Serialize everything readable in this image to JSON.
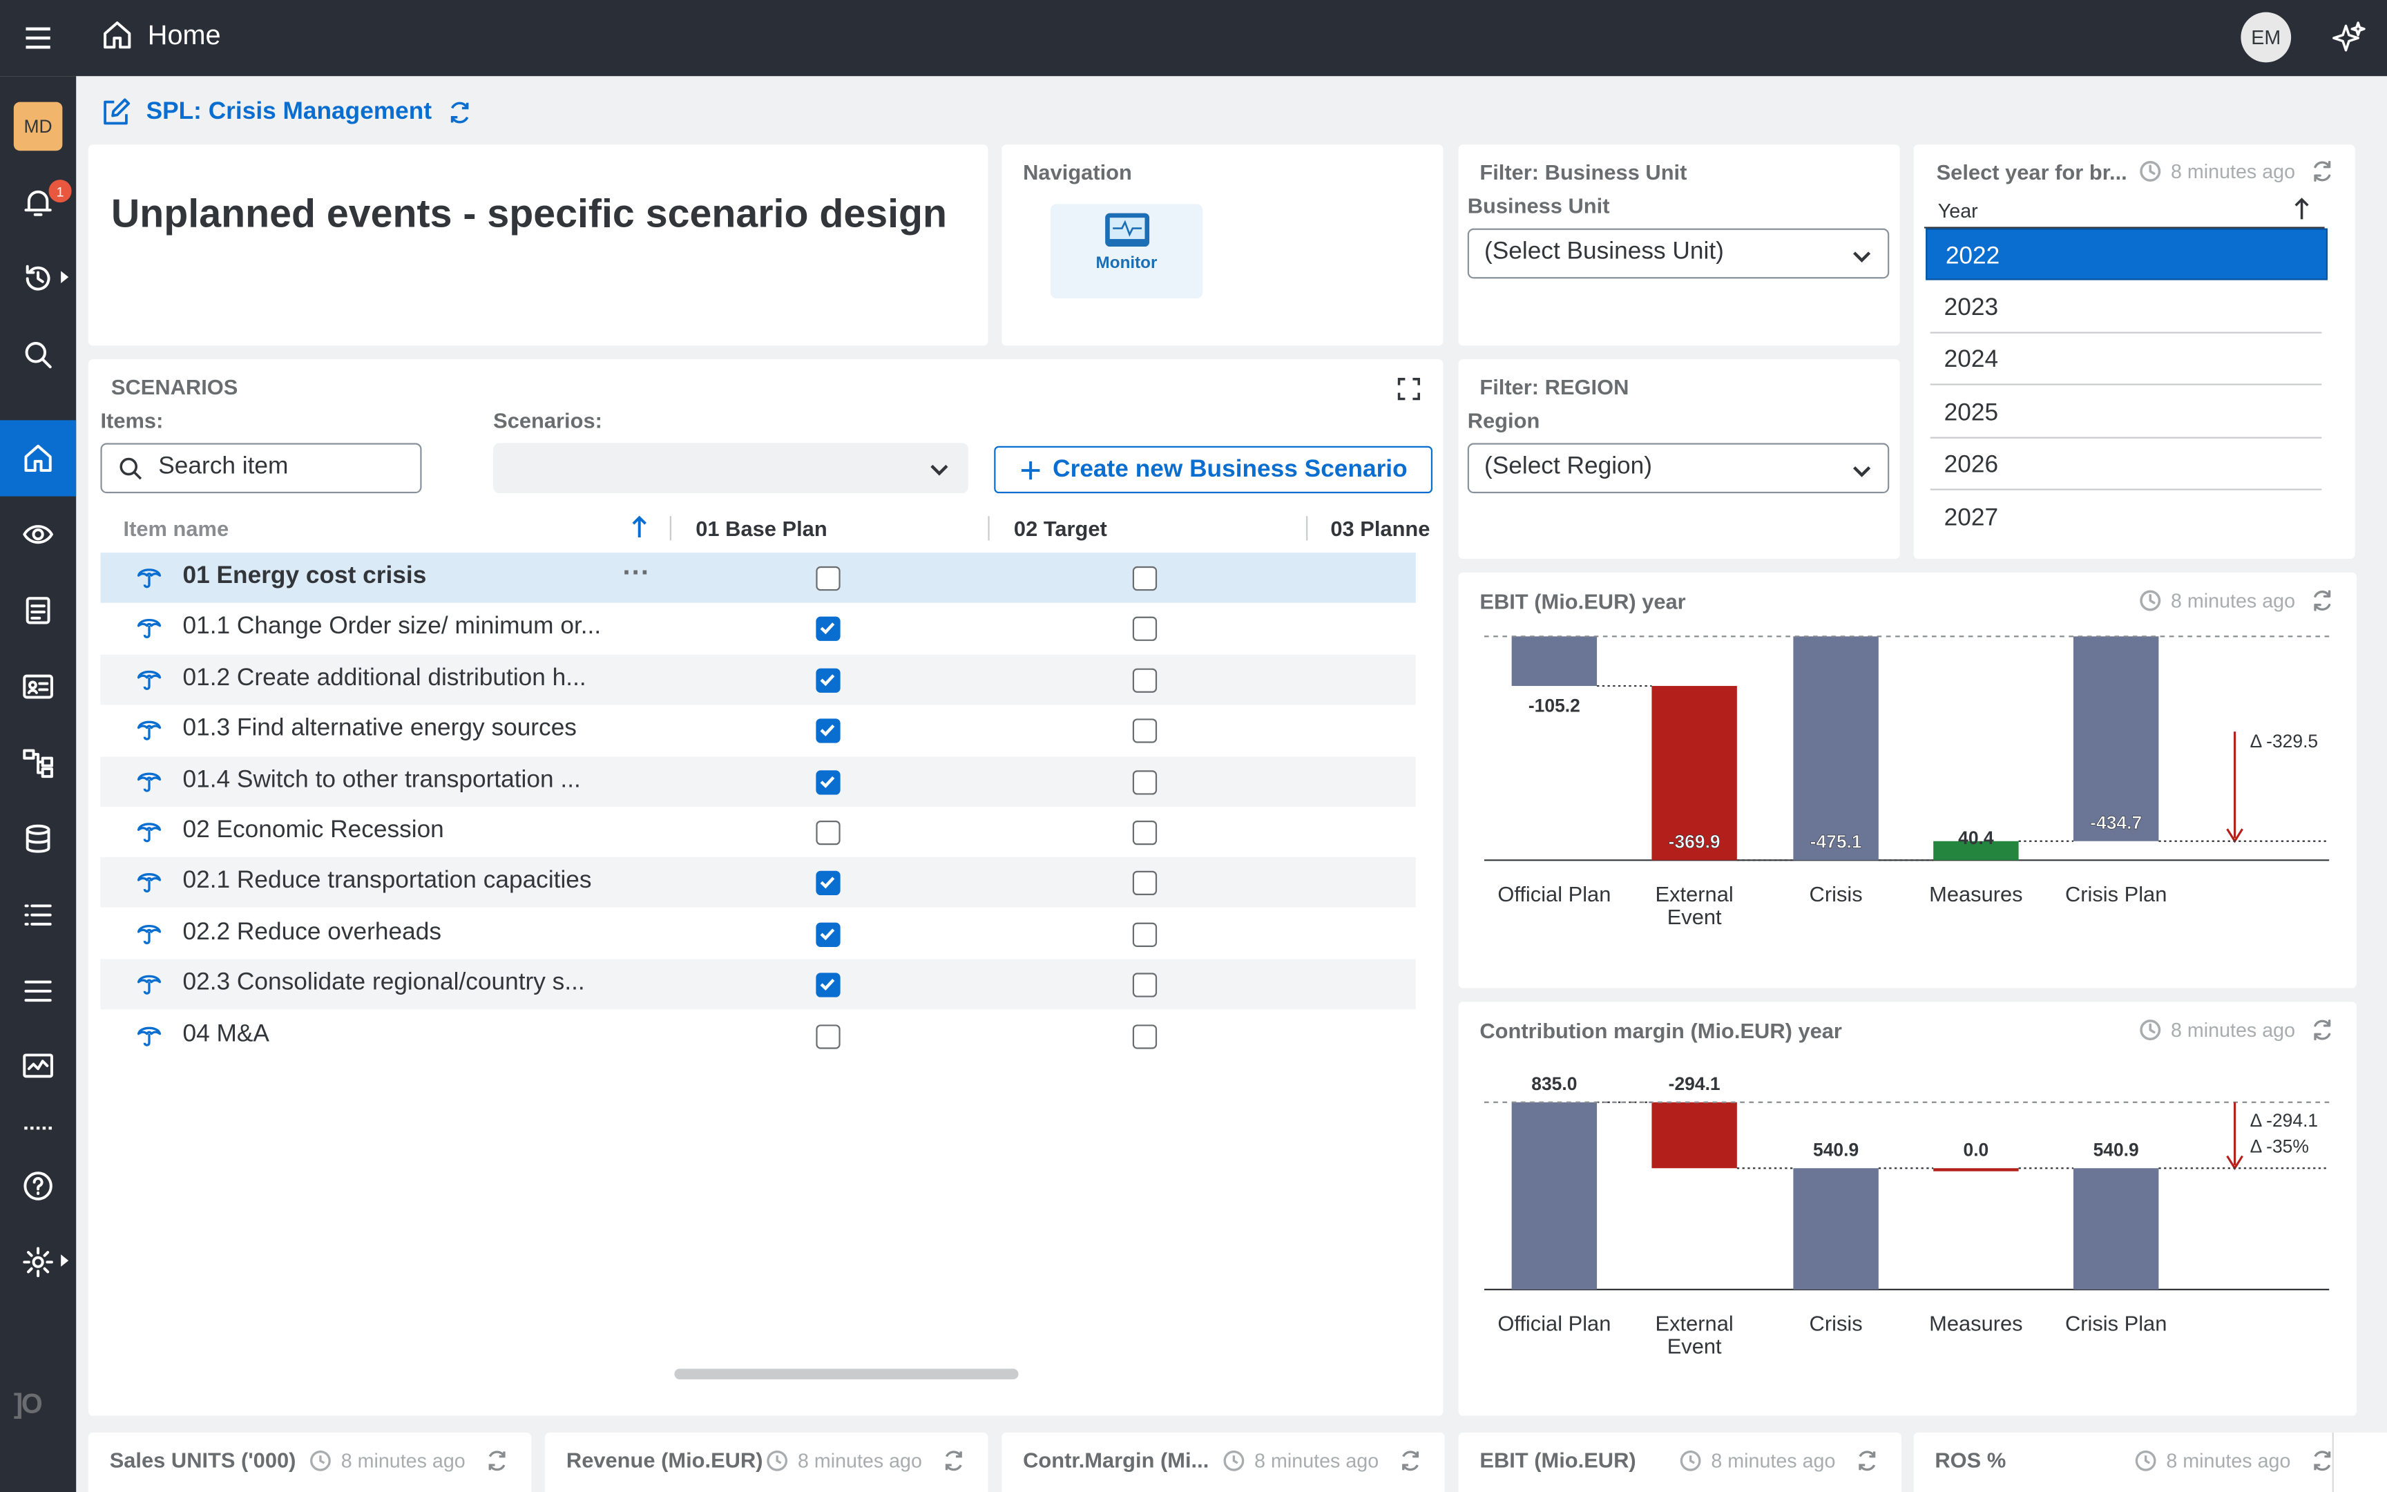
{
  "topbar": {
    "title": "Home",
    "user_initials": "EM"
  },
  "sidebar": {
    "avatar": "MD",
    "notification_count": "1",
    "icons": [
      "bell-icon",
      "history-icon",
      "search-icon",
      "home-icon",
      "eye-icon",
      "document-icon",
      "contact-card-icon",
      "hierarchy-icon",
      "database-icon",
      "list-icon",
      "menu-lines-icon",
      "monitor-chart-icon",
      "help-icon",
      "settings-icon"
    ]
  },
  "story": {
    "title": "SPL: Crisis Management"
  },
  "header_card": {
    "title": "Unplanned events - specific scenario design"
  },
  "navigation": {
    "label": "Navigation",
    "tile": "Monitor"
  },
  "filter_bu": {
    "title": "Filter: Business Unit",
    "label": "Business Unit",
    "value": "(Select Business Unit)"
  },
  "filter_region": {
    "title": "Filter: REGION",
    "label": "Region",
    "value": "(Select Region)"
  },
  "year_select": {
    "title": "Select year for br...",
    "ago": "8 minutes ago",
    "column": "Year",
    "years": [
      "2022",
      "2023",
      "2024",
      "2025",
      "2026",
      "2027"
    ],
    "selected": "2022"
  },
  "scenarios": {
    "title": "SCENARIOS",
    "items_label": "Items:",
    "scenarios_label": "Scenarios:",
    "search_placeholder": "Search item",
    "create_button": "Create new Business Scenario",
    "columns": [
      "Item name",
      "01 Base Plan",
      "02 Target",
      "03 Planne"
    ],
    "rows": [
      {
        "name": "01 Energy cost crisis",
        "base": false,
        "target": false
      },
      {
        "name": "01.1 Change Order size/ minimum or...",
        "base": true,
        "target": false
      },
      {
        "name": "01.2 Create additional distribution h...",
        "base": true,
        "target": false
      },
      {
        "name": "01.3 Find alternative energy sources",
        "base": true,
        "target": false
      },
      {
        "name": "01.4 Switch to other transportation ...",
        "base": true,
        "target": false
      },
      {
        "name": "02 Economic Recession",
        "base": false,
        "target": false
      },
      {
        "name": "02.1 Reduce transportation capacities",
        "base": true,
        "target": false
      },
      {
        "name": "02.2 Reduce overheads",
        "base": true,
        "target": false
      },
      {
        "name": "02.3 Consolidate regional/country s...",
        "base": true,
        "target": false
      },
      {
        "name": "04 M&A",
        "base": false,
        "target": false
      }
    ]
  },
  "ebit_chart": {
    "title": "EBIT (Mio.EUR) year",
    "ago": "8 minutes ago"
  },
  "cm_chart": {
    "title": "Contribution margin (Mio.EUR) year",
    "ago": "8 minutes ago"
  },
  "chart_data": [
    {
      "type": "bar",
      "title": "EBIT (Mio.EUR) year",
      "categories": [
        "Official Plan",
        "External Event",
        "Crisis",
        "Measures",
        "Crisis Plan"
      ],
      "values": [
        -105.2,
        -369.9,
        -475.1,
        40.4,
        -434.7
      ],
      "labels": [
        "-105.2",
        "-369.9",
        "-475.1",
        "40.4",
        "-434.7"
      ],
      "delta": "Δ -329.5",
      "colors": [
        "#6b7596",
        "#b3201b",
        "#6b7596",
        "#24863e",
        "#6b7596"
      ]
    },
    {
      "type": "bar",
      "title": "Contribution margin (Mio.EUR) year",
      "categories": [
        "Official Plan",
        "External Event",
        "Crisis",
        "Measures",
        "Crisis Plan"
      ],
      "values": [
        835.0,
        -294.1,
        540.9,
        0.0,
        540.9
      ],
      "labels": [
        "835.0",
        "-294.1",
        "540.9",
        "0.0",
        "540.9"
      ],
      "delta": "Δ -294.1",
      "delta_pct": "Δ -35%",
      "colors": [
        "#6b7596",
        "#b3201b",
        "#6b7596",
        "#b3201b",
        "#6b7596"
      ]
    }
  ],
  "bottom_cards": [
    {
      "title": "Sales UNITS ('000)",
      "ago": "8 minutes ago"
    },
    {
      "title": "Revenue (Mio.EUR)",
      "ago": "8 minutes ago"
    },
    {
      "title": "Contr.Margin (Mi...",
      "ago": "8 minutes ago"
    },
    {
      "title": "EBIT (Mio.EUR)",
      "ago": "8 minutes ago"
    },
    {
      "title": "ROS %",
      "ago": "8 minutes ago"
    }
  ]
}
